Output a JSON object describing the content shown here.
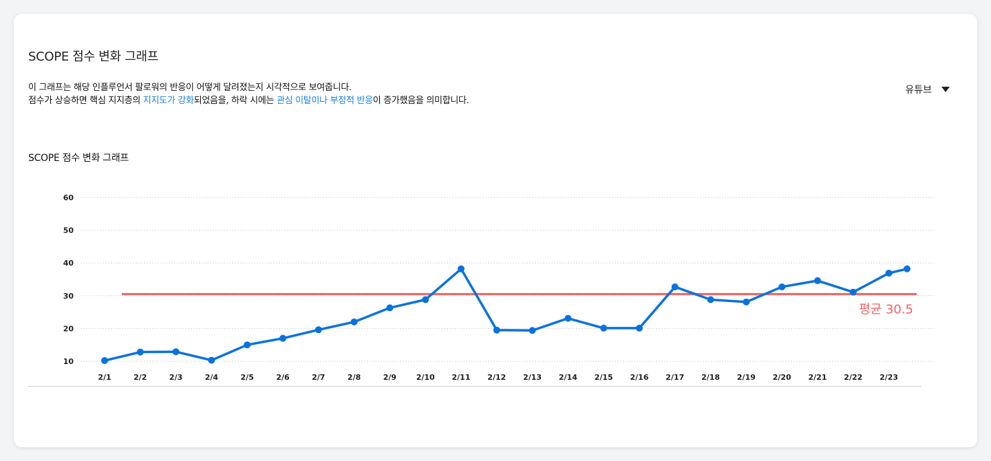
{
  "header": {
    "title": "SCOPE 점수 변화 그래프",
    "desc_line1": "이 그래프는 해당 인플루언서 팔로워의 반응이 어떻게 달려졌는지 시각적으로 보여줍니다.",
    "desc_line2_a": "점수가 상승하면 핵심 지지층의 ",
    "desc_line2_hl1": "지지도가 강화",
    "desc_line2_b": "되었음을, 하락 시에는 ",
    "desc_line2_hl2": "관심 이탈이나 부정적 반응",
    "desc_line2_c": "이 증가했음을 의미합니다."
  },
  "platform_select": {
    "value": "유튜브",
    "icon": "caret-down-icon"
  },
  "colors": {
    "line": "#0a72dd",
    "average": "#f06262",
    "highlight": "#1a7fe0",
    "grid": "#d9d9d9"
  },
  "chart_data": {
    "type": "line",
    "title": "SCOPE 점수 변화 그래프",
    "xlabel": "",
    "ylabel": "",
    "categories": [
      "2/1",
      "2/2",
      "2/3",
      "2/4",
      "2/5",
      "2/6",
      "2/7",
      "2/8",
      "2/9",
      "2/10",
      "2/11",
      "2/12",
      "2/13",
      "2/14",
      "2/15",
      "2/16",
      "2/17",
      "2/18",
      "2/19",
      "2/20",
      "2/21",
      "2/22",
      "2/23"
    ],
    "series": [
      {
        "values": [
          10.2,
          12.8,
          12.9,
          10.3,
          15.0,
          17.0,
          19.6,
          22.0,
          26.3,
          28.8,
          38.2,
          19.5,
          19.4,
          23.1,
          20.1,
          20.1,
          32.7,
          28.8,
          28.1,
          32.7,
          34.6,
          31.1,
          36.9
        ]
      }
    ],
    "extra_point": 38.2,
    "average": {
      "value": 30.5,
      "label": "평균 30.5"
    },
    "ylim": [
      10,
      60
    ],
    "yticks": [
      10,
      20,
      30,
      40,
      50,
      60
    ],
    "grid": true
  }
}
